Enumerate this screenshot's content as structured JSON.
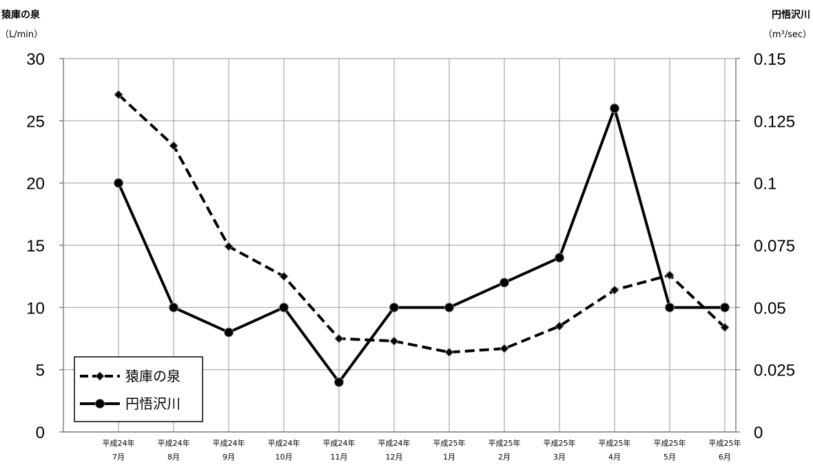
{
  "chart_data": {
    "type": "line",
    "categories": [
      [
        "平成24年",
        "7月"
      ],
      [
        "平成24年",
        "8月"
      ],
      [
        "平成24年",
        "9月"
      ],
      [
        "平成24年",
        "10月"
      ],
      [
        "平成24年",
        "11月"
      ],
      [
        "平成24年",
        "12月"
      ],
      [
        "平成25年",
        "1月"
      ],
      [
        "平成25年",
        "2月"
      ],
      [
        "平成25年",
        "3月"
      ],
      [
        "平成25年",
        "4月"
      ],
      [
        "平成25年",
        "5月"
      ],
      [
        "平成25年",
        "6月"
      ]
    ],
    "y_left": {
      "title": "猿庫の泉",
      "unit": "（L/min）",
      "ylim": [
        0,
        30
      ],
      "ticks": [
        "0",
        "5",
        "10",
        "15",
        "20",
        "25",
        "30"
      ]
    },
    "y_right": {
      "title": "円悟沢川",
      "unit": "（m³/sec）",
      "ylim": [
        0,
        0.15
      ],
      "ticks": [
        "0",
        "0.025",
        "0.05",
        "0.075",
        "0.1",
        "0.125",
        "0.15"
      ]
    },
    "series": [
      {
        "name": "猿庫の泉",
        "axis": "left",
        "style": "dashed",
        "marker": "diamond",
        "values": [
          27.1,
          23.0,
          14.9,
          12.5,
          7.5,
          7.3,
          6.4,
          6.7,
          8.5,
          11.4,
          12.6,
          8.4
        ]
      },
      {
        "name": "円悟沢川",
        "axis": "right",
        "style": "solid",
        "marker": "circle",
        "values": [
          0.1,
          0.05,
          0.04,
          0.05,
          0.02,
          0.05,
          0.05,
          0.06,
          0.07,
          0.13,
          0.05,
          0.05
        ]
      }
    ],
    "grid": true,
    "legend_position": "bottom-left",
    "colors": {
      "line": "#000000",
      "grid": "#a6a6a6",
      "marker_fill": "#000000"
    }
  }
}
